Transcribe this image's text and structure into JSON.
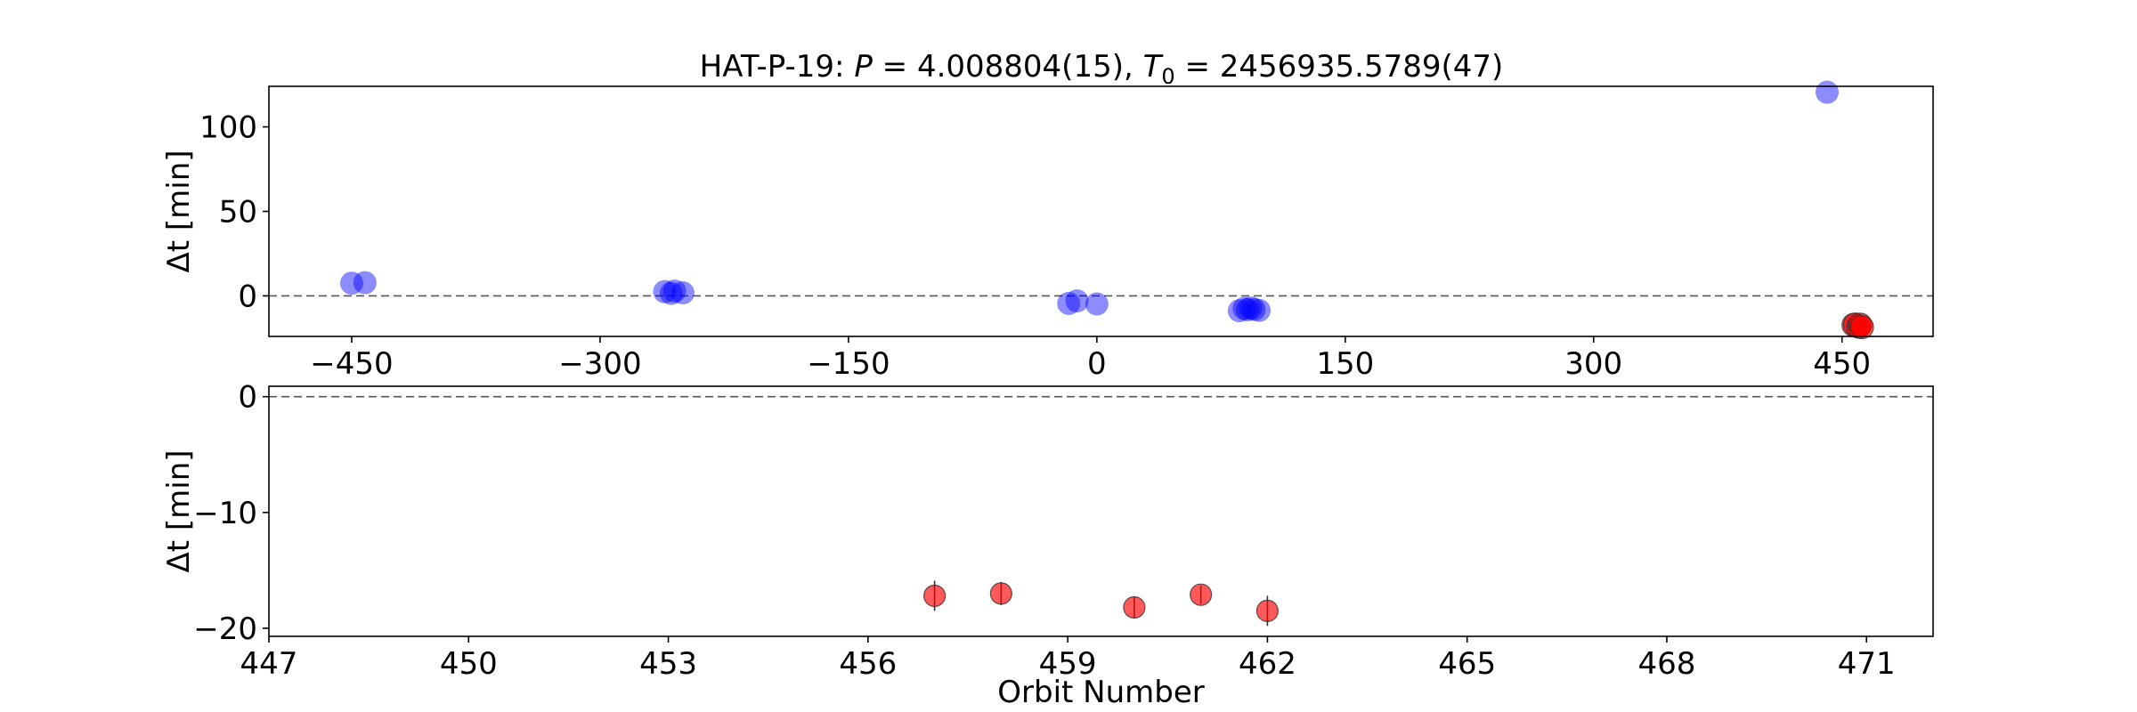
{
  "title": {
    "prefix": "HAT-P-19: ",
    "p_symbol": "P",
    "p_value": " = 4.008804(15), ",
    "t_symbol": "T",
    "t_subscript": "0",
    "t_value": " = 2456935.5789(47)"
  },
  "chart_data": [
    {
      "type": "scatter",
      "panel": "top",
      "xlabel": "",
      "ylabel": "Δt [min]",
      "xlim": [
        -500,
        505
      ],
      "ylim": [
        -24,
        124
      ],
      "xticks": [
        -450,
        -300,
        -150,
        0,
        150,
        300,
        450
      ],
      "xtick_labels": [
        "−450",
        "−300",
        "−150",
        "0",
        "150",
        "300",
        "450"
      ],
      "yticks": [
        0,
        50,
        100
      ],
      "ytick_labels": [
        "0",
        "50",
        "100"
      ],
      "reference_line_y": 0,
      "series": [
        {
          "color": "#0000ff",
          "alpha": 0.45,
          "points": [
            {
              "x": -450,
              "y": 7.5
            },
            {
              "x": -442,
              "y": 7.8
            },
            {
              "x": -261,
              "y": 2.5
            },
            {
              "x": -257,
              "y": 1.5
            },
            {
              "x": -255,
              "y": 2.8
            },
            {
              "x": -250,
              "y": 1.8
            },
            {
              "x": -17,
              "y": -4.5
            },
            {
              "x": -12,
              "y": -3.0
            },
            {
              "x": 0,
              "y": -4.8
            },
            {
              "x": 86,
              "y": -8.8
            },
            {
              "x": 89,
              "y": -7.5
            },
            {
              "x": 91,
              "y": -8.2
            },
            {
              "x": 93,
              "y": -7.2
            },
            {
              "x": 95,
              "y": -8.0
            },
            {
              "x": 98,
              "y": -8.6
            },
            {
              "x": 441,
              "y": 120.5
            }
          ]
        },
        {
          "color": "#ff0000",
          "alpha": 0.65,
          "points": [
            {
              "x": 457,
              "y": -17.2
            },
            {
              "x": 458,
              "y": -17.0
            },
            {
              "x": 460,
              "y": -18.2
            },
            {
              "x": 461,
              "y": -17.1
            },
            {
              "x": 462,
              "y": -18.5
            }
          ]
        }
      ]
    },
    {
      "type": "scatter",
      "panel": "bottom",
      "xlabel": "Orbit Number",
      "ylabel": "Δt [min]",
      "xlim": [
        447,
        472
      ],
      "ylim": [
        -20.7,
        0.9
      ],
      "xticks": [
        447,
        450,
        453,
        456,
        459,
        462,
        465,
        468,
        471
      ],
      "xtick_labels": [
        "447",
        "450",
        "453",
        "456",
        "459",
        "462",
        "465",
        "468",
        "471"
      ],
      "yticks": [
        0,
        -10,
        -20
      ],
      "ytick_labels": [
        "0",
        "−10",
        "−20"
      ],
      "reference_line_y": 0,
      "series": [
        {
          "color": "#ff0000",
          "alpha": 0.65,
          "points": [
            {
              "x": 457,
              "y": -17.2,
              "err": 1.3
            },
            {
              "x": 458,
              "y": -17.0,
              "err": 1.0
            },
            {
              "x": 460,
              "y": -18.2,
              "err": 0.9
            },
            {
              "x": 461,
              "y": -17.1,
              "err": 0.8
            },
            {
              "x": 462,
              "y": -18.5,
              "err": 1.3
            }
          ]
        }
      ]
    }
  ]
}
